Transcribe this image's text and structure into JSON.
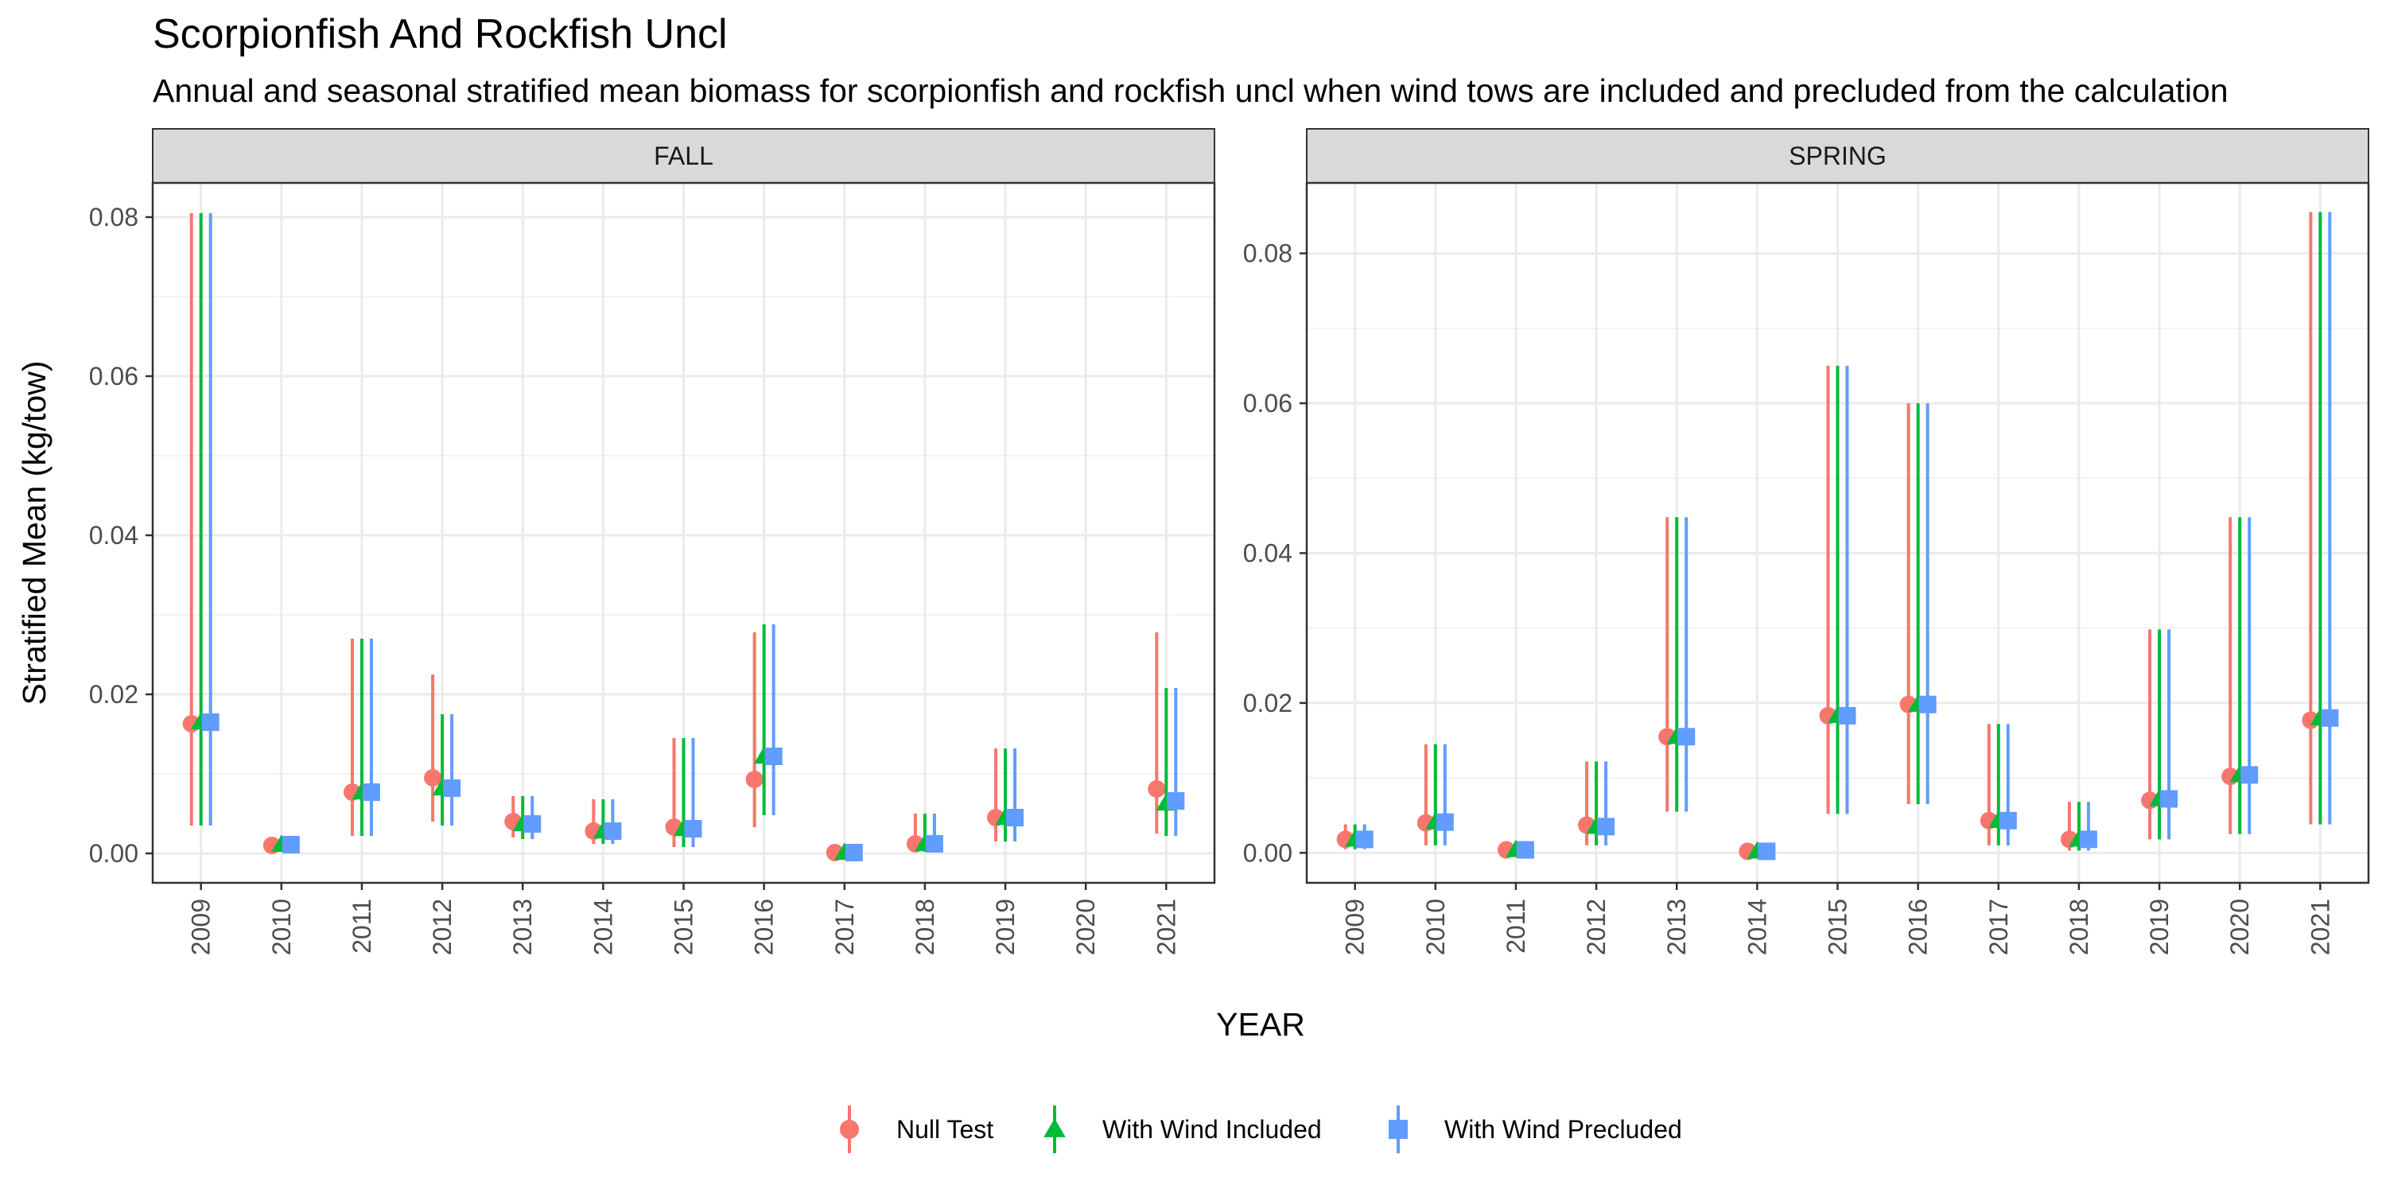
{
  "chart_data": {
    "type": "scatter",
    "title": "Scorpionfish And Rockfish Uncl",
    "subtitle": "Annual and seasonal stratified mean biomass for scorpionfish and rockfish uncl when wind tows are included and precluded from the calculation",
    "xlabel": "YEAR",
    "ylabel": "Stratified Mean (kg/tow)",
    "grid": true,
    "legend_position": "bottom",
    "categories": [
      "2009",
      "2010",
      "2011",
      "2012",
      "2013",
      "2014",
      "2015",
      "2016",
      "2017",
      "2018",
      "2019",
      "2020",
      "2021"
    ],
    "series_styles": [
      {
        "name": "Null Test",
        "color": "#F8766D",
        "shape": "circle"
      },
      {
        "name": "With Wind Included",
        "color": "#00BA38",
        "shape": "triangle"
      },
      {
        "name": "With Wind Precluded",
        "color": "#619CFF",
        "shape": "square"
      }
    ],
    "panels": [
      {
        "label": "FALL",
        "ylim": [
          -0.0037,
          0.0843
        ],
        "yticks": [
          0.0,
          0.02,
          0.04,
          0.06,
          0.08
        ],
        "ytick_labels": [
          "0.00",
          "0.02",
          "0.04",
          "0.06",
          "0.08"
        ],
        "series": [
          {
            "name": "Null Test",
            "values": [
              0.0163,
              0.001,
              0.0077,
              0.0095,
              0.004,
              0.0028,
              0.0033,
              0.0093,
              0.0001,
              0.0012,
              0.0045,
              null,
              0.0081
            ],
            "lower": [
              0.0035,
              0.0003,
              0.0022,
              0.004,
              0.002,
              0.0012,
              0.0008,
              0.0033,
              0.0,
              0.0002,
              0.0015,
              null,
              0.0025
            ],
            "upper": [
              0.0805,
              0.0015,
              0.027,
              0.0225,
              0.0072,
              0.0068,
              0.0145,
              0.0278,
              0.0003,
              0.005,
              0.0132,
              null,
              0.0278
            ]
          },
          {
            "name": "With Wind Included",
            "values": [
              0.0165,
              0.0011,
              0.0077,
              0.0082,
              0.0037,
              0.0028,
              0.0031,
              0.0122,
              0.0001,
              0.0012,
              0.0045,
              null,
              0.0063
            ],
            "lower": [
              0.0035,
              0.0003,
              0.0022,
              0.0035,
              0.0018,
              0.0012,
              0.0008,
              0.0048,
              0.0,
              0.0002,
              0.0015,
              null,
              0.0022
            ],
            "upper": [
              0.0805,
              0.0016,
              0.027,
              0.0175,
              0.0072,
              0.0068,
              0.0145,
              0.0288,
              0.0003,
              0.005,
              0.0132,
              null,
              0.0208
            ]
          },
          {
            "name": "With Wind Precluded",
            "values": [
              0.0165,
              0.0011,
              0.0077,
              0.0082,
              0.0037,
              0.0028,
              0.0031,
              0.0122,
              0.0001,
              0.0012,
              0.0045,
              null,
              0.0066
            ],
            "lower": [
              0.0035,
              0.0003,
              0.0022,
              0.0035,
              0.0018,
              0.0012,
              0.0008,
              0.0048,
              0.0,
              0.0002,
              0.0015,
              null,
              0.0022
            ],
            "upper": [
              0.0805,
              0.0016,
              0.027,
              0.0175,
              0.0072,
              0.0068,
              0.0145,
              0.0288,
              0.0003,
              0.005,
              0.0132,
              null,
              0.0208
            ]
          }
        ]
      },
      {
        "label": "SPRING",
        "ylim": [
          -0.004,
          0.0894
        ],
        "yticks": [
          0.0,
          0.02,
          0.04,
          0.06,
          0.08
        ],
        "ytick_labels": [
          "0.00",
          "0.02",
          "0.04",
          "0.06",
          "0.08"
        ],
        "series": [
          {
            "name": "Null Test",
            "values": [
              0.0018,
              0.004,
              0.0004,
              0.0037,
              0.0155,
              0.0002,
              0.0183,
              0.0198,
              0.0043,
              0.0018,
              0.007,
              0.0102,
              0.0177
            ],
            "lower": [
              0.0005,
              0.001,
              0.0,
              0.001,
              0.0055,
              0.0,
              0.0052,
              0.0065,
              0.001,
              0.0003,
              0.0018,
              0.0025,
              0.0038
            ],
            "upper": [
              0.0038,
              0.0145,
              0.0015,
              0.0122,
              0.0448,
              0.0008,
              0.065,
              0.06,
              0.0172,
              0.0068,
              0.0298,
              0.0448,
              0.0855
            ]
          },
          {
            "name": "With Wind Included",
            "values": [
              0.0018,
              0.0041,
              0.0004,
              0.0035,
              0.0155,
              0.0002,
              0.0183,
              0.0198,
              0.0043,
              0.0018,
              0.0072,
              0.0104,
              0.018
            ],
            "lower": [
              0.0005,
              0.001,
              0.0,
              0.001,
              0.0055,
              0.0,
              0.0052,
              0.0065,
              0.001,
              0.0003,
              0.0018,
              0.0025,
              0.0038
            ],
            "upper": [
              0.0038,
              0.0145,
              0.0015,
              0.0122,
              0.0448,
              0.0008,
              0.065,
              0.06,
              0.0172,
              0.0068,
              0.0298,
              0.0448,
              0.0855
            ]
          },
          {
            "name": "With Wind Precluded",
            "values": [
              0.0018,
              0.0041,
              0.0004,
              0.0035,
              0.0155,
              0.0002,
              0.0183,
              0.0198,
              0.0043,
              0.0018,
              0.0072,
              0.0104,
              0.018
            ],
            "lower": [
              0.0005,
              0.001,
              0.0,
              0.001,
              0.0055,
              0.0,
              0.0052,
              0.0065,
              0.001,
              0.0003,
              0.0018,
              0.0025,
              0.0038
            ],
            "upper": [
              0.0038,
              0.0145,
              0.0015,
              0.0122,
              0.0448,
              0.0008,
              0.065,
              0.06,
              0.0172,
              0.0068,
              0.0298,
              0.0448,
              0.0855
            ]
          }
        ]
      }
    ]
  }
}
